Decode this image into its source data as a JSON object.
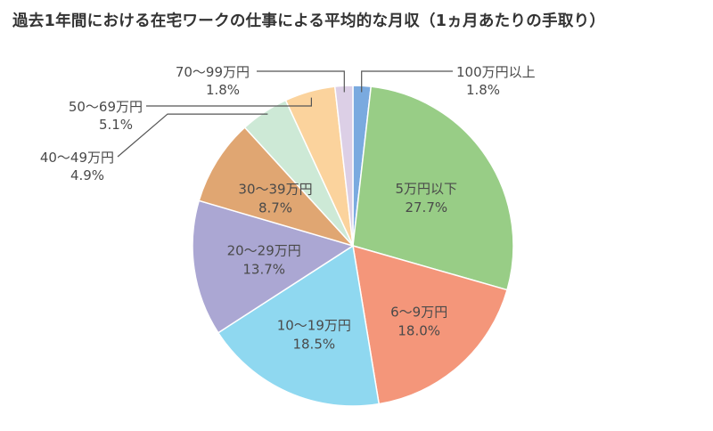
{
  "chart_data": {
    "type": "pie",
    "title": "過去1年間における在宅ワークの仕事による平均的な月収（1ヵ月あたりの手取り）",
    "unit": "%",
    "slices": [
      {
        "label": "100万円以上",
        "value": 1.8,
        "value_label": "1.8%",
        "color": "#7aaadf"
      },
      {
        "label": "5万円以下",
        "value": 27.7,
        "value_label": "27.7%",
        "color": "#98cd86"
      },
      {
        "label": "6〜9万円",
        "value": 18.0,
        "value_label": "18.0%",
        "color": "#f4967a"
      },
      {
        "label": "10〜19万円",
        "value": 18.5,
        "value_label": "18.5%",
        "color": "#8fd8f0"
      },
      {
        "label": "20〜29万円",
        "value": 13.7,
        "value_label": "13.7%",
        "color": "#aba7d3"
      },
      {
        "label": "30〜39万円",
        "value": 8.7,
        "value_label": "8.7%",
        "color": "#e0a672"
      },
      {
        "label": "40〜49万円",
        "value": 4.9,
        "value_label": "4.9%",
        "color": "#cde9d6"
      },
      {
        "label": "50〜69万円",
        "value": 5.1,
        "value_label": "5.1%",
        "color": "#fbd39d"
      },
      {
        "label": "70〜99万円",
        "value": 1.8,
        "value_label": "1.8%",
        "color": "#dccfe6"
      }
    ],
    "start": "12 o'clock",
    "direction": "clockwise"
  }
}
